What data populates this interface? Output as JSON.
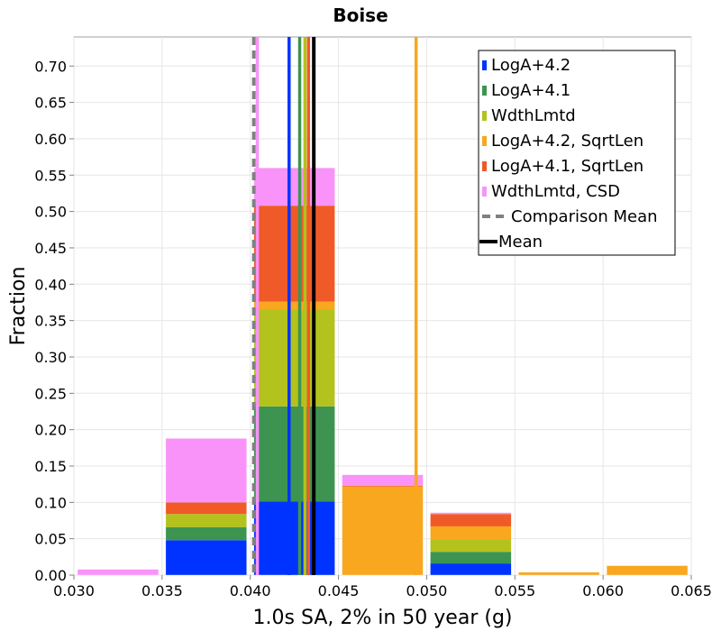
{
  "chart_data": {
    "type": "bar",
    "stacked": true,
    "title": "Boise",
    "xlabel": "1.0s SA, 2% in 50 year (g)",
    "ylabel": "Fraction",
    "xlim": [
      0.03,
      0.065
    ],
    "ylim": [
      0.0,
      0.74
    ],
    "xticks": [
      "0.030",
      "0.035",
      "0.040",
      "0.045",
      "0.050",
      "0.055",
      "0.060",
      "0.065"
    ],
    "yticks": [
      "0.00",
      "0.05",
      "0.10",
      "0.15",
      "0.20",
      "0.25",
      "0.30",
      "0.35",
      "0.40",
      "0.45",
      "0.50",
      "0.55",
      "0.60",
      "0.65",
      "0.70"
    ],
    "grid": true,
    "legend_position": "top-right",
    "bins": [
      {
        "x0": 0.03,
        "x1": 0.035
      },
      {
        "x0": 0.035,
        "x1": 0.04
      },
      {
        "x0": 0.04,
        "x1": 0.045
      },
      {
        "x0": 0.045,
        "x1": 0.05
      },
      {
        "x0": 0.05,
        "x1": 0.055
      },
      {
        "x0": 0.055,
        "x1": 0.06
      },
      {
        "x0": 0.06,
        "x1": 0.065
      }
    ],
    "series": [
      {
        "name": "LogA+4.2",
        "color": "#0033ff",
        "values": [
          0,
          0.048,
          0.101,
          0,
          0.016,
          0,
          0
        ],
        "mean": 0.0422
      },
      {
        "name": "LogA+4.1",
        "color": "#3d9450",
        "values": [
          0,
          0.018,
          0.131,
          0,
          0.016,
          0,
          0
        ],
        "mean": 0.0428
      },
      {
        "name": "WdthLmtd",
        "color": "#b3c21c",
        "values": [
          0,
          0.018,
          0.133,
          0,
          0.017,
          0,
          0
        ],
        "mean": 0.0431
      },
      {
        "name": "LogA+4.2, SqrtLen",
        "color": "#f8a71f",
        "values": [
          0,
          0,
          0.011,
          0.122,
          0.018,
          0.004,
          0.013
        ],
        "mean": 0.0494
      },
      {
        "name": "LogA+4.1, SqrtLen",
        "color": "#f05a28",
        "values": [
          0,
          0.016,
          0.132,
          0.001,
          0.017,
          0,
          0
        ],
        "mean": 0.0433
      },
      {
        "name": "WdthLmtd, CSD",
        "color": "#f993f9",
        "values": [
          0.008,
          0.088,
          0.052,
          0.015,
          0.002,
          0,
          0
        ],
        "mean": 0.0404
      }
    ],
    "comparison_mean": {
      "name": "Comparison Mean",
      "x": 0.0402,
      "color": "#808080"
    },
    "mean": {
      "name": "Mean",
      "x": 0.0436,
      "color": "#000000"
    }
  }
}
